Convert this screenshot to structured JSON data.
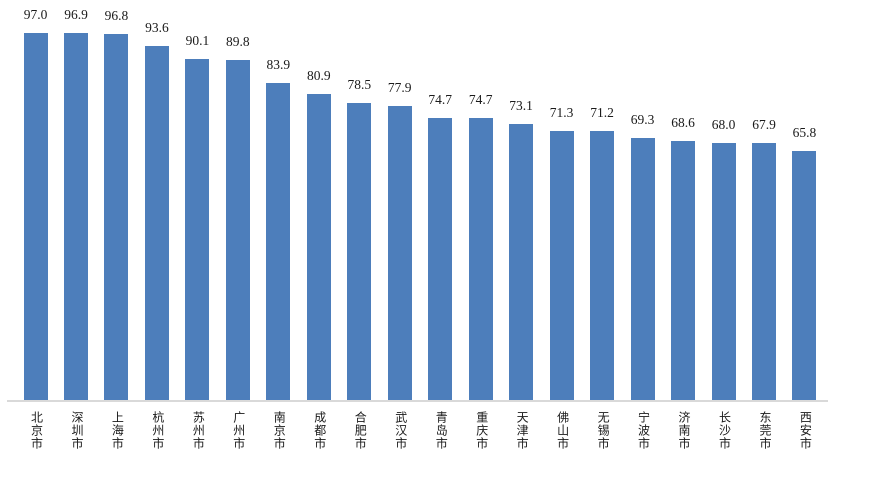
{
  "chart_data": {
    "type": "bar",
    "title": "",
    "xlabel": "",
    "ylabel": "",
    "categories": [
      "北京市",
      "深圳市",
      "上海市",
      "杭州市",
      "苏州市",
      "广州市",
      "南京市",
      "成都市",
      "合肥市",
      "武汉市",
      "青岛市",
      "重庆市",
      "天津市",
      "佛山市",
      "无锡市",
      "宁波市",
      "济南市",
      "长沙市",
      "东莞市",
      "西安市"
    ],
    "values": [
      97.0,
      96.9,
      96.8,
      93.6,
      90.1,
      89.8,
      83.9,
      80.9,
      78.5,
      77.9,
      74.7,
      74.7,
      73.1,
      71.3,
      71.2,
      69.3,
      68.6,
      68.0,
      67.9,
      65.8
    ],
    "value_labels": [
      "97.0",
      "96.9",
      "96.8",
      "93.6",
      "90.1",
      "89.8",
      "83.9",
      "80.9",
      "78.5",
      "77.9",
      "74.7",
      "74.7",
      "73.1",
      "71.3",
      "71.2",
      "69.3",
      "68.6",
      "68.0",
      "67.9",
      "65.8"
    ],
    "ylim": [
      0,
      105
    ],
    "grid": false,
    "legend_position": "none",
    "value_label_position": "above-bar",
    "category_label_orientation": "vertical",
    "bar_color": "#4D7EBB",
    "axis_line_color": "#D9D9D9",
    "label_color": "#1a1a1a"
  }
}
